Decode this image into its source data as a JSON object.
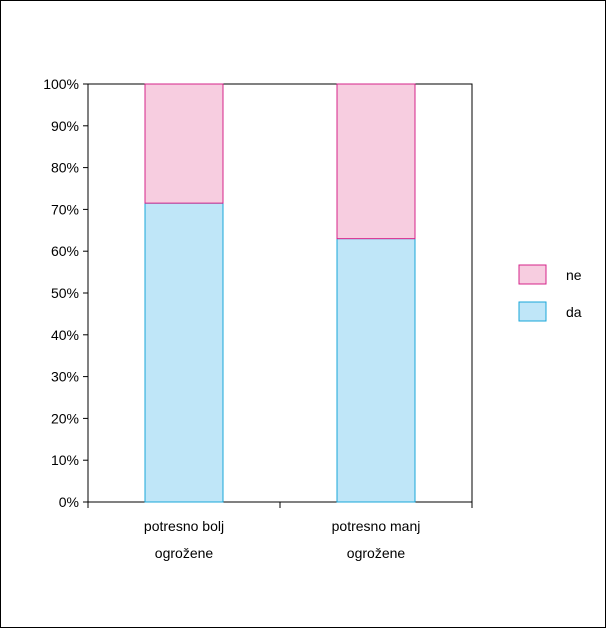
{
  "chart_data": {
    "type": "bar",
    "stacked": true,
    "percent_stacked": true,
    "title": "",
    "xlabel": "",
    "ylabel": "",
    "ylim": [
      0,
      100
    ],
    "y_ticks": [
      "0%",
      "10%",
      "20%",
      "30%",
      "40%",
      "50%",
      "60%",
      "70%",
      "80%",
      "90%",
      "100%"
    ],
    "categories": [
      [
        "potresno bolj",
        "ogrožene"
      ],
      [
        "potresno manj",
        "ogrožene"
      ]
    ],
    "series": [
      {
        "name": "da",
        "values": [
          71.5,
          63
        ],
        "fill": "#bfe6f8",
        "stroke": "#1aa7d9"
      },
      {
        "name": "ne",
        "values": [
          28.5,
          37
        ],
        "fill": "#f7cde0",
        "stroke": "#d4248a"
      }
    ],
    "legend_order": [
      "ne",
      "da"
    ],
    "legend_position": "right",
    "grid": false,
    "colors": {
      "da_fill": "#bfe6f8",
      "da_stroke": "#1aa7d9",
      "ne_fill": "#f7cde0",
      "ne_stroke": "#d4248a"
    }
  }
}
